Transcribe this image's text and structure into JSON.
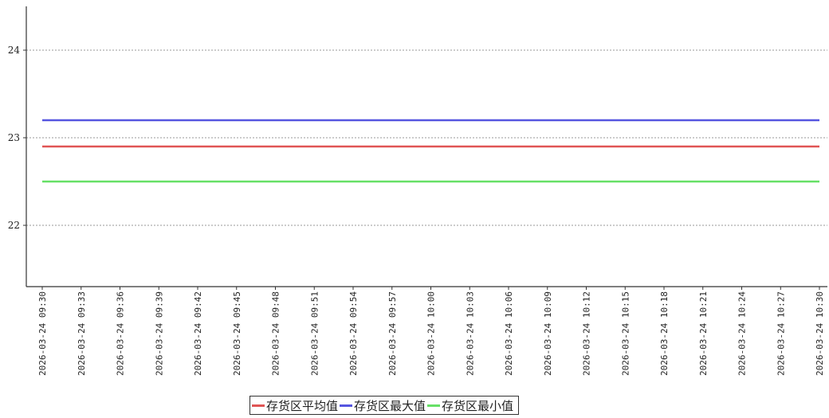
{
  "chart_data": {
    "type": "line",
    "x": [
      "2026-03-24 09:30",
      "2026-03-24 09:33",
      "2026-03-24 09:36",
      "2026-03-24 09:39",
      "2026-03-24 09:42",
      "2026-03-24 09:45",
      "2026-03-24 09:48",
      "2026-03-24 09:51",
      "2026-03-24 09:54",
      "2026-03-24 09:57",
      "2026-03-24 10:00",
      "2026-03-24 10:03",
      "2026-03-24 10:06",
      "2026-03-24 10:09",
      "2026-03-24 10:12",
      "2026-03-24 10:15",
      "2026-03-24 10:18",
      "2026-03-24 10:21",
      "2026-03-24 10:24",
      "2026-03-24 10:27",
      "2026-03-24 10:30"
    ],
    "series": [
      {
        "name": "存货区平均值",
        "color": "#e05555",
        "values": [
          22.9,
          22.9,
          22.9,
          22.9,
          22.9,
          22.9,
          22.9,
          22.9,
          22.9,
          22.9,
          22.9,
          22.9,
          22.9,
          22.9,
          22.9,
          22.9,
          22.9,
          22.9,
          22.9,
          22.9,
          22.9
        ]
      },
      {
        "name": "存货区最大值",
        "color": "#5555e0",
        "values": [
          23.2,
          23.2,
          23.2,
          23.2,
          23.2,
          23.2,
          23.2,
          23.2,
          23.2,
          23.2,
          23.2,
          23.2,
          23.2,
          23.2,
          23.2,
          23.2,
          23.2,
          23.2,
          23.2,
          23.2,
          23.2
        ]
      },
      {
        "name": "存货区最小值",
        "color": "#66e066",
        "values": [
          22.5,
          22.5,
          22.5,
          22.5,
          22.5,
          22.5,
          22.5,
          22.5,
          22.5,
          22.5,
          22.5,
          22.5,
          22.5,
          22.5,
          22.5,
          22.5,
          22.5,
          22.5,
          22.5,
          22.5,
          22.5
        ]
      }
    ],
    "yticks": [
      22,
      23,
      24
    ],
    "ylim": [
      21.3,
      24.5
    ],
    "grid": true,
    "legend_position": "bottom-center"
  }
}
